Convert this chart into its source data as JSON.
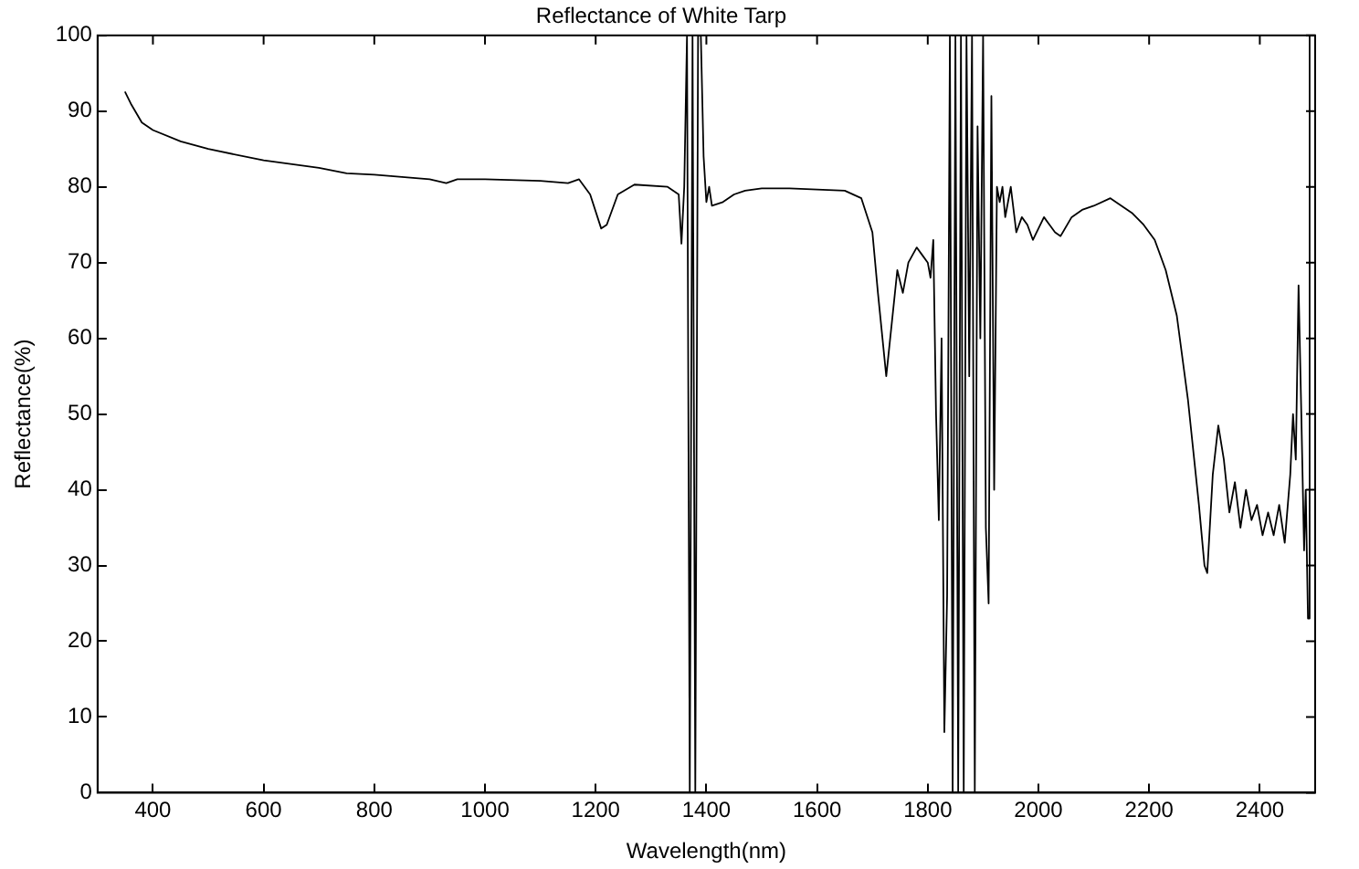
{
  "chart_data": {
    "type": "line",
    "title": "Reflectance of White Tarp",
    "xlabel": "Wavelength(nm)",
    "ylabel": "Reflectance(%)",
    "xlim": [
      300,
      2500
    ],
    "xticks": [
      400,
      600,
      800,
      1000,
      1200,
      1400,
      1600,
      1800,
      2000,
      2200,
      2400
    ],
    "ylim": [
      0,
      100
    ],
    "yticks": [
      0,
      10,
      20,
      30,
      40,
      50,
      60,
      70,
      80,
      90,
      100
    ],
    "marker": "none",
    "line_style": "solid",
    "x": [
      350,
      360,
      380,
      400,
      450,
      500,
      600,
      700,
      750,
      800,
      900,
      930,
      950,
      1000,
      1100,
      1150,
      1170,
      1190,
      1210,
      1220,
      1240,
      1270,
      1330,
      1350,
      1355,
      1360,
      1365,
      1370,
      1375,
      1380,
      1385,
      1390,
      1395,
      1400,
      1405,
      1410,
      1430,
      1450,
      1470,
      1500,
      1550,
      1650,
      1680,
      1700,
      1710,
      1725,
      1735,
      1745,
      1755,
      1765,
      1780,
      1790,
      1800,
      1805,
      1810,
      1815,
      1820,
      1825,
      1830,
      1835,
      1840,
      1845,
      1850,
      1855,
      1860,
      1865,
      1870,
      1875,
      1880,
      1885,
      1890,
      1895,
      1900,
      1905,
      1910,
      1915,
      1920,
      1925,
      1930,
      1935,
      1940,
      1950,
      1960,
      1970,
      1980,
      1990,
      2000,
      2010,
      2020,
      2030,
      2040,
      2060,
      2080,
      2100,
      2130,
      2150,
      2170,
      2190,
      2210,
      2230,
      2250,
      2270,
      2290,
      2300,
      2305,
      2315,
      2325,
      2335,
      2345,
      2355,
      2365,
      2375,
      2385,
      2395,
      2405,
      2415,
      2425,
      2435,
      2445,
      2455,
      2460,
      2465,
      2470,
      2475,
      2480,
      2483,
      2487,
      2490
    ],
    "series": [
      {
        "color": "#000000",
        "values": [
          92.5,
          91,
          88.5,
          87.5,
          86,
          85,
          83.5,
          82.5,
          81.8,
          81.6,
          81,
          80.5,
          81,
          81,
          80.8,
          80.5,
          81,
          79,
          74.5,
          75,
          79,
          80.3,
          80,
          79,
          72.5,
          80,
          100,
          0,
          100,
          0,
          100,
          100,
          84,
          78,
          80,
          77.5,
          78,
          79,
          79.5,
          79.8,
          79.8,
          79.5,
          78.5,
          74,
          66,
          55,
          62,
          69,
          66,
          70,
          72,
          71,
          70,
          68,
          73,
          50,
          36,
          60,
          8,
          26,
          100,
          0,
          100,
          0,
          100,
          0,
          100,
          55,
          100,
          0,
          88,
          60,
          100,
          35,
          25,
          92,
          40,
          80,
          78,
          80,
          76,
          80,
          74,
          76,
          75,
          73,
          74.5,
          76,
          75,
          74,
          73.5,
          76,
          77,
          77.5,
          78.5,
          77.5,
          76.5,
          75,
          73,
          69,
          63,
          52,
          38,
          30,
          29,
          42,
          48.5,
          44,
          37,
          41,
          35,
          40,
          36,
          38,
          34,
          37,
          34,
          38,
          33,
          42,
          50,
          44,
          67,
          50,
          32,
          40,
          23,
          100
        ]
      }
    ]
  }
}
